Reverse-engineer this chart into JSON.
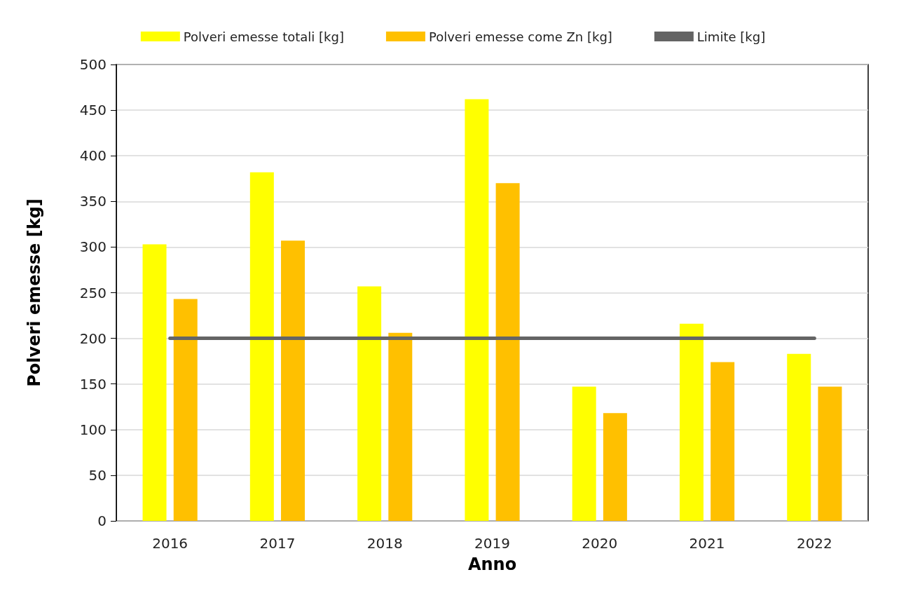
{
  "chart_data": {
    "type": "bar",
    "xlabel": "Anno",
    "ylabel": "Polveri emesse [kg]",
    "categories": [
      "2016",
      "2017",
      "2018",
      "2019",
      "2020",
      "2021",
      "2022"
    ],
    "series": [
      {
        "name": "Polveri emesse totali [kg]",
        "color": "#ffff00",
        "values": [
          303,
          382,
          257,
          462,
          147,
          216,
          183
        ]
      },
      {
        "name": "Polveri emesse come Zn [kg]",
        "color": "#ffc000",
        "values": [
          243,
          307,
          206,
          370,
          118,
          174,
          147
        ]
      },
      {
        "name": "Limite [kg]",
        "type": "line",
        "color": "#646464",
        "values": [
          200,
          200,
          200,
          200,
          200,
          200,
          200
        ],
        "marker": "none",
        "line_style": "solid"
      }
    ],
    "ylim": [
      0,
      500
    ],
    "yticks": [
      0,
      50,
      100,
      150,
      200,
      250,
      300,
      350,
      400,
      450,
      500
    ],
    "grid": "y",
    "legend": "top"
  }
}
